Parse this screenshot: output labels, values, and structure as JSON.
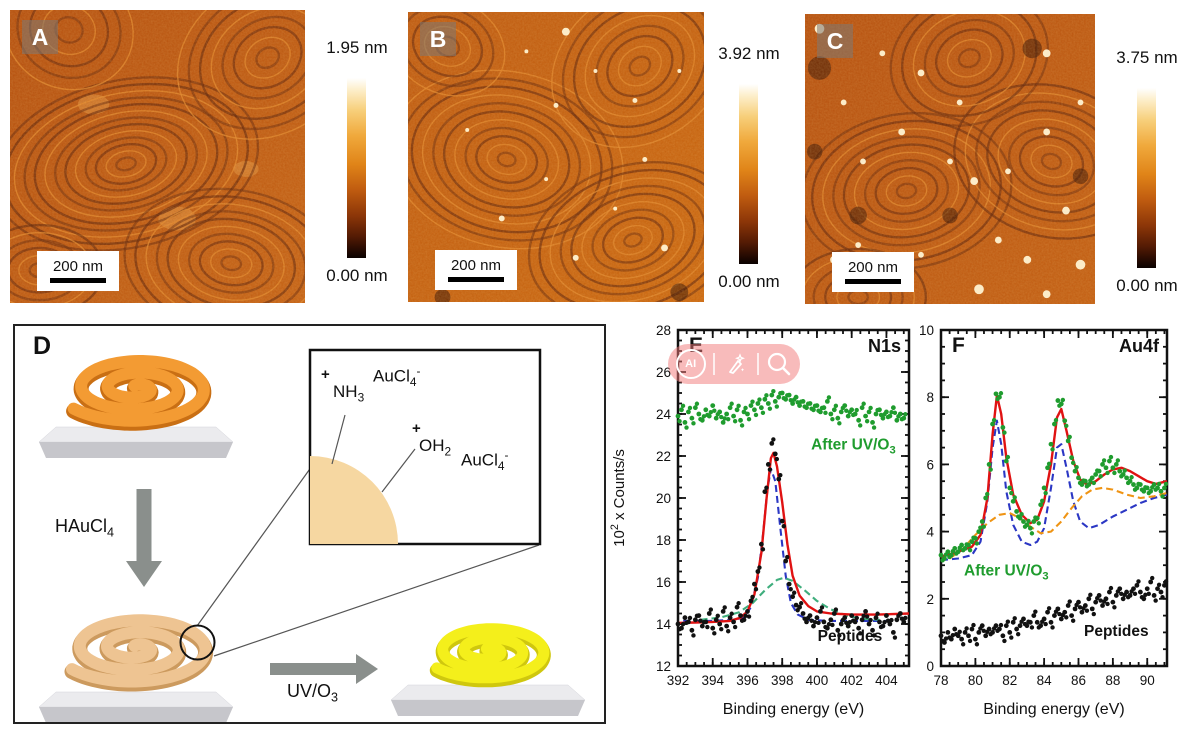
{
  "afm_panels": [
    {
      "label": "A",
      "scale_bar_label": "200 nm",
      "height_max": "1.95 nm",
      "height_min": "0.00 nm"
    },
    {
      "label": "B",
      "scale_bar_label": "200 nm",
      "height_max": "3.92 nm",
      "height_min": "0.00 nm"
    },
    {
      "label": "C",
      "scale_bar_label": "200 nm",
      "height_max": "3.75 nm",
      "height_min": "0.00 nm"
    }
  ],
  "panel_d": {
    "label": "D",
    "arrow1_label": "HAuCl{_4}",
    "arrow2_label": "UV/O{_3}",
    "inset": {
      "group1_plus": "+",
      "group1": "NH{_3}",
      "ion1": "AuCl{_4}{^-}",
      "group2_plus": "+",
      "group2": "OH{_2}",
      "ion2": "AuCl{_4}{^-}"
    }
  },
  "overlay_toolbar": {
    "ai_label": "AI",
    "icons": [
      "ai-badge-icon",
      "magic-edit-icon",
      "search-icon"
    ]
  },
  "chart_data": [
    {
      "id": "E",
      "type": "scatter",
      "panel_label": "E",
      "title": "N1s",
      "xlabel": "Binding energy (eV)",
      "ylabel": "10{^2} x Counts/s",
      "xlim": [
        392,
        405.3
      ],
      "ylim": [
        12,
        28
      ],
      "xticks": [
        392,
        394,
        396,
        398,
        400,
        402,
        404
      ],
      "yticks": [
        12,
        14,
        16,
        18,
        20,
        22,
        24,
        26,
        28
      ],
      "xminor": 0.5,
      "yminor": 0.5,
      "grid": false,
      "annotations": [
        {
          "text": "After UV/O{_3}",
          "x": 402.1,
          "y": 22.3,
          "color": "#1f9c2e"
        },
        {
          "text": "Peptides",
          "x": 401.9,
          "y": 13.2,
          "color": "#111111"
        }
      ],
      "series": [
        {
          "name": "Component Gauss",
          "kind": "line",
          "style": "dashed",
          "color": "#2b37c4",
          "points": [
            [
              392.3,
              14.15
            ],
            [
              394,
              14.15
            ],
            [
              395.2,
              14.2
            ],
            [
              395.8,
              14.3
            ],
            [
              396.2,
              14.8
            ],
            [
              396.6,
              16.2
            ],
            [
              396.9,
              18.3
            ],
            [
              397.15,
              20.4
            ],
            [
              397.35,
              21.4
            ],
            [
              397.6,
              20.8
            ],
            [
              397.9,
              18.5
            ],
            [
              398.2,
              16.3
            ],
            [
              398.5,
              15.0
            ],
            [
              398.9,
              14.45
            ],
            [
              399.5,
              14.2
            ],
            [
              400.6,
              14.15
            ],
            [
              402.5,
              14.15
            ],
            [
              404.3,
              14.15
            ]
          ]
        },
        {
          "name": "Component broad",
          "kind": "line",
          "style": "dashed",
          "color": "#3fae7d",
          "points": [
            [
              393.3,
              14.2
            ],
            [
              394.5,
              14.32
            ],
            [
              395.5,
              14.55
            ],
            [
              396.3,
              15.0
            ],
            [
              397,
              15.6
            ],
            [
              397.7,
              16.1
            ],
            [
              398.1,
              16.2
            ],
            [
              398.6,
              16.05
            ],
            [
              399.3,
              15.6
            ],
            [
              400,
              15.1
            ],
            [
              400.8,
              14.7
            ],
            [
              401.7,
              14.4
            ],
            [
              402.6,
              14.25
            ],
            [
              403.6,
              14.2
            ]
          ]
        },
        {
          "name": "Fit",
          "kind": "line",
          "style": "solid",
          "color": "#e01212",
          "points": [
            [
              392,
              14.05
            ],
            [
              393,
              14.07
            ],
            [
              394,
              14.1
            ],
            [
              395,
              14.15
            ],
            [
              395.6,
              14.3
            ],
            [
              396,
              14.6
            ],
            [
              396.4,
              15.4
            ],
            [
              396.8,
              17.4
            ],
            [
              397.1,
              20.0
            ],
            [
              397.35,
              21.9
            ],
            [
              397.5,
              22.15
            ],
            [
              397.7,
              21.5
            ],
            [
              398,
              19.8
            ],
            [
              398.3,
              17.8
            ],
            [
              398.6,
              16.3
            ],
            [
              399,
              15.35
            ],
            [
              399.5,
              14.85
            ],
            [
              400,
              14.6
            ],
            [
              400.8,
              14.5
            ],
            [
              402,
              14.45
            ],
            [
              403.5,
              14.45
            ],
            [
              405.3,
              14.5
            ]
          ]
        },
        {
          "name": "After UV/O3 data",
          "kind": "scatter",
          "dense": true,
          "color": "#1f9c2e",
          "x0": 392.0,
          "dx": 0.2,
          "y": [
            23.9,
            24.2,
            23.6,
            24.1,
            23.8,
            24.3,
            24.0,
            23.7,
            24.2,
            23.9,
            24.4,
            23.8,
            24.1,
            23.6,
            24.0,
            24.3,
            23.9,
            24.2,
            23.7,
            24.1,
            24.0,
            24.4,
            24.2,
            24.5,
            24.3,
            24.7,
            24.5,
            24.9,
            24.6,
            24.8,
            25.0,
            24.7,
            24.9,
            24.5,
            24.8,
            24.4,
            24.6,
            24.3,
            24.5,
            24.2,
            24.4,
            24.1,
            24.3,
            24.6,
            24.0,
            24.2,
            23.8,
            24.1,
            24.4,
            23.9,
            24.2,
            24.0,
            23.7,
            24.3,
            23.9,
            24.1,
            23.6,
            24.0,
            24.2,
            23.8,
            24.1,
            23.9,
            24.3,
            23.7,
            24.0,
            23.8
          ]
        },
        {
          "name": "Peptides data",
          "kind": "scatter",
          "dense": true,
          "color": "#111111",
          "x0": 392.0,
          "dx": 0.2,
          "y": [
            14.0,
            13.8,
            14.3,
            14.1,
            13.7,
            14.2,
            14.4,
            13.9,
            14.1,
            14.5,
            13.8,
            14.2,
            14.0,
            14.6,
            13.9,
            14.3,
            14.1,
            14.8,
            14.4,
            14.2,
            14.6,
            15.1,
            15.9,
            16.5,
            17.8,
            20.3,
            21.6,
            22.6,
            22.1,
            20.9,
            18.9,
            17.0,
            15.9,
            15.3,
            14.9,
            14.8,
            14.5,
            14.1,
            14.4,
            13.9,
            14.3,
            14.6,
            14.1,
            13.8,
            14.2,
            14.5,
            13.7,
            14.0,
            14.3,
            13.9,
            14.4,
            14.1,
            13.8,
            14.2,
            14.6,
            14.0,
            13.7,
            14.3,
            14.1,
            13.9,
            14.4,
            14.0,
            13.6,
            14.2,
            14.5,
            14.1
          ]
        }
      ]
    },
    {
      "id": "F",
      "type": "scatter",
      "panel_label": "F",
      "title": "Au4f",
      "xlabel": "Binding energy (eV)",
      "ylabel": "",
      "xlim": [
        78,
        91.15
      ],
      "ylim": [
        0,
        10
      ],
      "xticks": [
        78,
        80,
        82,
        84,
        86,
        88,
        90
      ],
      "yticks": [
        0,
        2,
        4,
        6,
        8,
        10
      ],
      "xminor": 0.5,
      "yminor": 0.5,
      "grid": false,
      "annotations": [
        {
          "text": "After UV/O{_3}",
          "x": 81.8,
          "y": 2.7,
          "color": "#1f9c2e"
        },
        {
          "text": "Peptides",
          "x": 88.2,
          "y": 0.9,
          "color": "#111111"
        }
      ],
      "series": [
        {
          "name": "Component blue doublet",
          "kind": "line",
          "style": "dashed",
          "color": "#2b37c4",
          "points": [
            [
              78,
              3.15
            ],
            [
              79,
              3.2
            ],
            [
              79.8,
              3.3
            ],
            [
              80.3,
              3.7
            ],
            [
              80.7,
              4.9
            ],
            [
              81.0,
              6.5
            ],
            [
              81.25,
              7.3
            ],
            [
              81.5,
              6.6
            ],
            [
              81.8,
              5.2
            ],
            [
              82.2,
              4.2
            ],
            [
              82.7,
              3.7
            ],
            [
              83.2,
              3.6
            ],
            [
              83.6,
              3.7
            ],
            [
              84.0,
              4.1
            ],
            [
              84.4,
              5.3
            ],
            [
              84.75,
              6.5
            ],
            [
              85.0,
              6.6
            ],
            [
              85.3,
              5.9
            ],
            [
              85.7,
              4.9
            ],
            [
              86.1,
              4.3
            ],
            [
              86.6,
              4.1
            ],
            [
              87.2,
              4.2
            ],
            [
              88.0,
              4.45
            ],
            [
              88.8,
              4.65
            ],
            [
              89.6,
              4.85
            ],
            [
              90.4,
              5.0
            ],
            [
              91.15,
              5.1
            ]
          ]
        },
        {
          "name": "Component orange doublet",
          "kind": "line",
          "style": "dashed",
          "color": "#ef9414",
          "points": [
            [
              78.5,
              3.2
            ],
            [
              79.3,
              3.5
            ],
            [
              80.0,
              3.9
            ],
            [
              80.7,
              4.25
            ],
            [
              81.4,
              4.5
            ],
            [
              82.0,
              4.55
            ],
            [
              82.6,
              4.4
            ],
            [
              83.2,
              4.15
            ],
            [
              83.8,
              3.95
            ],
            [
              84.4,
              4.0
            ],
            [
              85.0,
              4.3
            ],
            [
              85.6,
              4.7
            ],
            [
              86.2,
              5.05
            ],
            [
              86.8,
              5.25
            ],
            [
              87.4,
              5.3
            ],
            [
              88.0,
              5.25
            ],
            [
              88.8,
              5.1
            ],
            [
              89.6,
              5.0
            ],
            [
              90.4,
              5.05
            ],
            [
              91.15,
              5.15
            ]
          ]
        },
        {
          "name": "Fit",
          "kind": "line",
          "style": "solid",
          "color": "#e01212",
          "points": [
            [
              78,
              3.25
            ],
            [
              79,
              3.4
            ],
            [
              79.8,
              3.55
            ],
            [
              80.3,
              3.9
            ],
            [
              80.7,
              5.0
            ],
            [
              81.0,
              6.9
            ],
            [
              81.25,
              8.05
            ],
            [
              81.5,
              7.5
            ],
            [
              81.8,
              6.2
            ],
            [
              82.2,
              5.1
            ],
            [
              82.7,
              4.5
            ],
            [
              83.2,
              4.25
            ],
            [
              83.6,
              4.35
            ],
            [
              84.0,
              4.9
            ],
            [
              84.4,
              6.0
            ],
            [
              84.75,
              7.4
            ],
            [
              85.0,
              7.65
            ],
            [
              85.3,
              7.0
            ],
            [
              85.7,
              6.1
            ],
            [
              86.1,
              5.55
            ],
            [
              86.5,
              5.4
            ],
            [
              87.0,
              5.5
            ],
            [
              87.5,
              5.7
            ],
            [
              88.0,
              5.85
            ],
            [
              88.5,
              5.9
            ],
            [
              89.0,
              5.8
            ],
            [
              89.5,
              5.65
            ],
            [
              90.0,
              5.5
            ],
            [
              90.5,
              5.42
            ],
            [
              91.15,
              5.5
            ]
          ]
        },
        {
          "name": "After UV/O3 data",
          "kind": "scatter",
          "dense": true,
          "color": "#1f9c2e",
          "x0": 78.0,
          "dx": 0.2,
          "y": [
            3.3,
            3.2,
            3.4,
            3.3,
            3.5,
            3.4,
            3.6,
            3.5,
            3.6,
            3.7,
            3.8,
            4.0,
            4.3,
            5.0,
            6.0,
            7.2,
            8.1,
            8.0,
            7.1,
            6.1,
            5.3,
            4.9,
            4.6,
            4.4,
            4.3,
            4.2,
            4.1,
            4.3,
            4.4,
            4.8,
            5.3,
            5.9,
            6.6,
            7.2,
            7.9,
            7.8,
            7.3,
            6.7,
            6.2,
            5.8,
            5.6,
            5.4,
            5.5,
            5.4,
            5.6,
            5.7,
            5.8,
            6.0,
            5.9,
            6.1,
            5.9,
            6.0,
            5.8,
            5.7,
            5.6,
            5.5,
            5.4,
            5.3,
            5.4,
            5.2,
            5.3,
            5.2,
            5.4,
            5.3,
            5.2,
            5.3
          ]
        },
        {
          "name": "Peptides data",
          "kind": "scatter",
          "dense": true,
          "color": "#111111",
          "x0": 78.0,
          "dx": 0.2,
          "y": [
            0.9,
            0.7,
            1.0,
            0.8,
            1.1,
            0.9,
            0.8,
            1.0,
            0.9,
            1.1,
            0.8,
            1.0,
            1.2,
            0.9,
            1.1,
            1.0,
            1.2,
            1.1,
            0.9,
            1.2,
            1.0,
            1.3,
            1.1,
            1.2,
            1.4,
            1.2,
            1.3,
            1.5,
            1.3,
            1.2,
            1.4,
            1.6,
            1.3,
            1.5,
            1.7,
            1.4,
            1.6,
            1.8,
            1.5,
            1.7,
            1.9,
            1.6,
            1.8,
            2.0,
            1.7,
            1.9,
            2.1,
            1.8,
            2.0,
            2.2,
            1.9,
            2.1,
            2.3,
            2.0,
            2.2,
            2.1,
            2.3,
            2.4,
            2.2,
            2.0,
            2.3,
            2.5,
            2.1,
            2.3,
            2.2,
            2.4
          ]
        }
      ]
    }
  ]
}
